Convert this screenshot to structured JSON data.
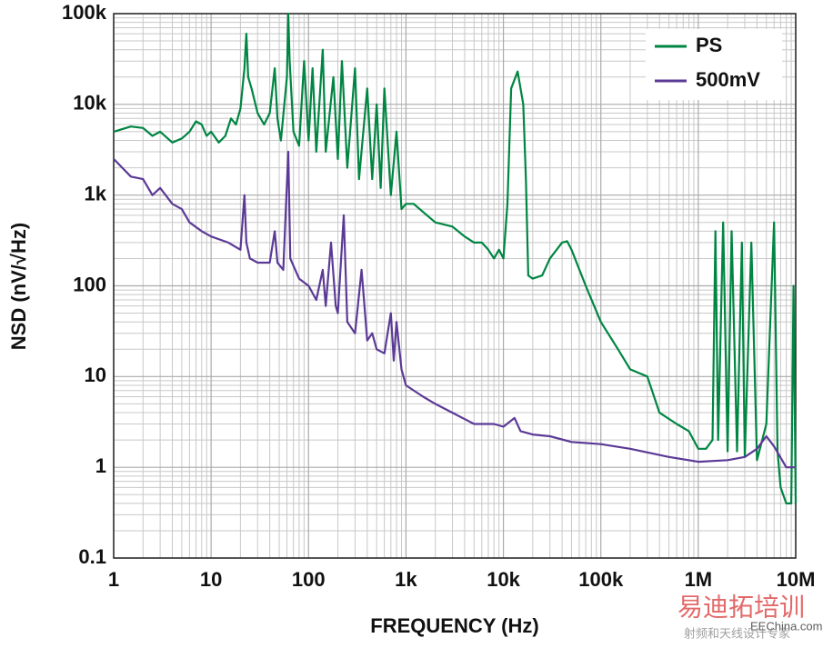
{
  "chart_data": {
    "type": "line",
    "xlabel": "FREQUENCY (Hz)",
    "ylabel": "NSD (nV/√Hz)",
    "xscale": "log",
    "yscale": "log",
    "grid": true,
    "legend": "upper right",
    "xlim": [
      1,
      10000000
    ],
    "ylim": [
      0.1,
      100000
    ],
    "xticks": [
      1,
      10,
      100,
      {
        "value": 1000,
        "label": "1k"
      },
      {
        "value": 10000,
        "label": "10k"
      },
      {
        "value": 100000,
        "label": "100k"
      },
      {
        "value": 1000000,
        "label": "1M"
      },
      {
        "value": 10000000,
        "label": "10M"
      }
    ],
    "yticks": [
      0.1,
      1,
      10,
      100,
      {
        "value": 1000,
        "label": "1k"
      },
      {
        "value": 10000,
        "label": "10k"
      },
      {
        "value": 100000,
        "label": "100k"
      }
    ],
    "series": [
      {
        "name": "PS",
        "color": "#008542",
        "x": [
          1,
          1.5,
          2,
          2.5,
          3,
          4,
          5,
          6,
          7,
          8,
          9,
          10,
          12,
          14,
          16,
          18,
          20,
          22,
          23,
          24,
          26,
          30,
          35,
          40,
          45,
          48,
          52,
          60,
          62,
          64,
          70,
          80,
          90,
          100,
          110,
          120,
          140,
          150,
          180,
          200,
          220,
          250,
          300,
          330,
          400,
          450,
          500,
          550,
          600,
          700,
          800,
          900,
          1000,
          1200,
          1500,
          2000,
          3000,
          4000,
          5000,
          6000,
          7000,
          8000,
          9000,
          10000,
          11000,
          12000,
          14000,
          16000,
          17000,
          18000,
          20000,
          25000,
          30000,
          40000,
          45000,
          50000,
          70000,
          100000,
          150000,
          200000,
          300000,
          400000,
          600000,
          800000,
          1000000,
          1200000,
          1400000,
          1500000,
          1600000,
          1800000,
          2000000,
          2200000,
          2500000,
          2800000,
          3000000,
          3500000,
          4000000,
          5000000,
          6000000,
          6500000,
          7000000,
          8000000,
          9000000,
          9500000,
          10000000
        ],
        "values": [
          5000,
          5700,
          5500,
          4500,
          5000,
          3800,
          4200,
          5000,
          6500,
          6000,
          4500,
          5000,
          3800,
          4500,
          7000,
          6000,
          9000,
          25000,
          60000,
          20000,
          15000,
          8000,
          6000,
          8000,
          25000,
          7000,
          4000,
          20000,
          100000,
          30000,
          5000,
          3500,
          30000,
          4000,
          25000,
          3000,
          40000,
          3000,
          20000,
          2500,
          30000,
          2000,
          25000,
          1500,
          15000,
          1500,
          10000,
          1200,
          15000,
          1000,
          5000,
          700,
          800,
          800,
          650,
          500,
          450,
          350,
          300,
          300,
          250,
          200,
          250,
          200,
          800,
          15000,
          23000,
          10000,
          1500,
          130,
          120,
          130,
          200,
          300,
          310,
          250,
          100,
          40,
          20,
          12,
          10,
          4,
          3,
          2.5,
          1.6,
          1.6,
          2,
          400,
          2,
          500,
          1.5,
          400,
          1.5,
          300,
          1.3,
          300,
          1.2,
          3,
          500,
          1.5,
          0.6,
          0.4,
          0.4,
          100,
          0.4
        ]
      },
      {
        "name": "500mV",
        "color": "#5b3a96",
        "x": [
          1,
          1.5,
          2,
          2.5,
          3,
          4,
          5,
          6,
          8,
          10,
          15,
          20,
          22,
          23,
          25,
          30,
          40,
          45,
          48,
          55,
          62,
          65,
          80,
          100,
          120,
          140,
          150,
          170,
          190,
          200,
          230,
          250,
          300,
          350,
          400,
          450,
          500,
          600,
          700,
          750,
          800,
          900,
          1000,
          1500,
          2000,
          3000,
          5000,
          8000,
          10000,
          13000,
          15000,
          20000,
          30000,
          50000,
          100000,
          200000,
          500000,
          1000000,
          2000000,
          3000000,
          4000000,
          5000000,
          6000000,
          8000000,
          10000000
        ],
        "values": [
          2500,
          1600,
          1500,
          1000,
          1200,
          800,
          700,
          500,
          400,
          350,
          300,
          250,
          1000,
          300,
          200,
          180,
          180,
          400,
          180,
          150,
          3000,
          200,
          120,
          100,
          70,
          150,
          60,
          300,
          60,
          50,
          600,
          40,
          30,
          150,
          25,
          30,
          20,
          18,
          50,
          15,
          40,
          12,
          8,
          6,
          5,
          4,
          3,
          3,
          2.8,
          3.5,
          2.5,
          2.3,
          2.2,
          1.9,
          1.8,
          1.6,
          1.3,
          1.15,
          1.2,
          1.3,
          1.6,
          2.2,
          1.7,
          1,
          1
        ]
      }
    ],
    "watermark": [
      "易迪拓培训",
      "EEChina.com",
      "射频和天线设计专家"
    ]
  }
}
